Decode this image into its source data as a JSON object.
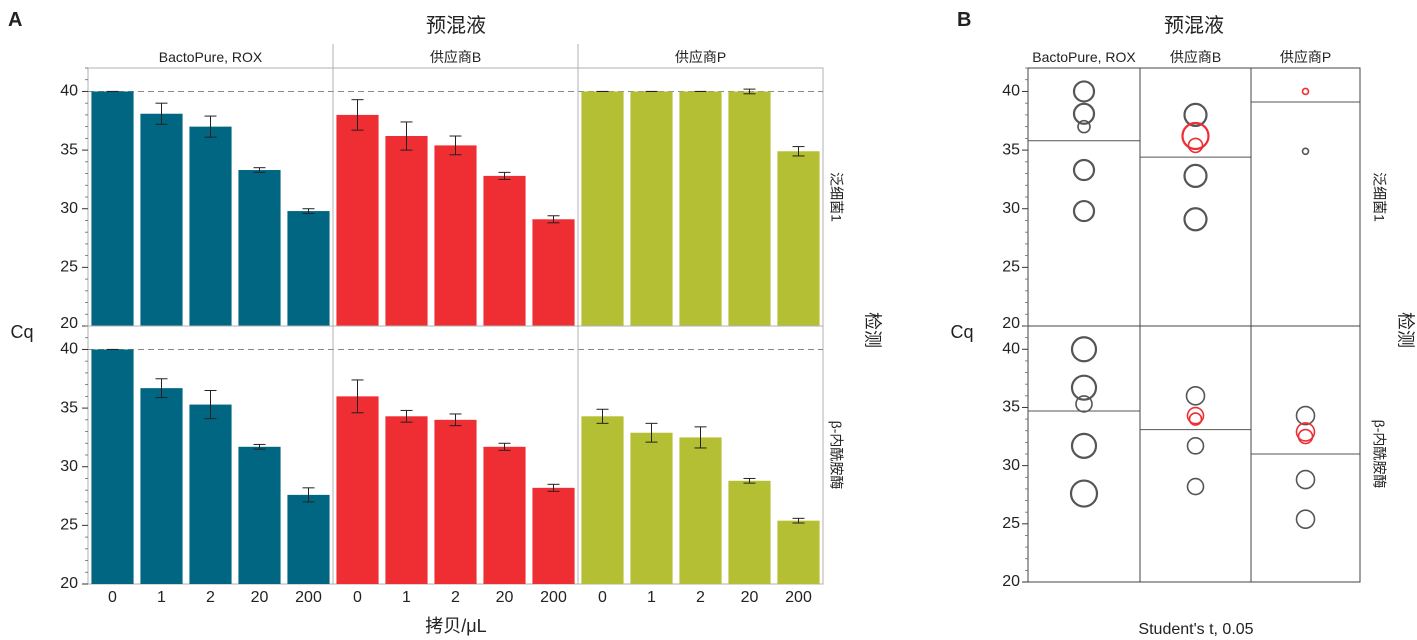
{
  "colors": {
    "BactoPure, ROX": "#006682",
    "供应商B": "#ee2e33",
    "供应商P": "#b5bf33",
    "circle_gray": "#555555",
    "circle_red": "#ee2e33"
  },
  "chart_data": [
    {
      "panel": "A",
      "type": "bar",
      "title": "预混液",
      "xlabel": "拷贝/μL",
      "ylabel": "Cq",
      "row_facet_label": "检测",
      "columns": [
        "BactoPure, ROX",
        "供应商B",
        "供应商P"
      ],
      "rows": [
        "泛细菌1",
        "β-内酰胺酶"
      ],
      "categories": [
        "0",
        "1",
        "2",
        "20",
        "200"
      ],
      "ylim": [
        20,
        42
      ],
      "yticks": [
        20,
        25,
        30,
        35,
        40
      ],
      "reference_line": 40,
      "data": {
        "泛细菌1": {
          "BactoPure, ROX": {
            "values": [
              40,
              38.1,
              37.0,
              33.3,
              29.8
            ],
            "errors": [
              0,
              0.9,
              0.9,
              0.2,
              0.2
            ]
          },
          "供应商B": {
            "values": [
              38.0,
              36.2,
              35.4,
              32.8,
              29.1
            ],
            "errors": [
              1.3,
              1.2,
              0.8,
              0.3,
              0.3
            ]
          },
          "供应商P": {
            "values": [
              40,
              40,
              40,
              40,
              34.9
            ],
            "errors": [
              0,
              0,
              0,
              0.2,
              0.4
            ]
          }
        },
        "β-内酰胺酶": {
          "BactoPure, ROX": {
            "values": [
              40,
              36.7,
              35.3,
              31.7,
              27.6
            ],
            "errors": [
              0,
              0.8,
              1.2,
              0.2,
              0.6
            ]
          },
          "供应商B": {
            "values": [
              36.0,
              34.3,
              34.0,
              31.7,
              28.2
            ],
            "errors": [
              1.4,
              0.5,
              0.5,
              0.3,
              0.3
            ]
          },
          "供应商P": {
            "values": [
              34.3,
              32.9,
              32.5,
              28.8,
              25.4
            ],
            "errors": [
              0.6,
              0.8,
              0.9,
              0.2,
              0.2
            ]
          }
        }
      }
    },
    {
      "panel": "B",
      "type": "scatter",
      "title": "预混液",
      "ylabel": "Cq",
      "row_facet_label": "检测",
      "note": "Student's t, 0.05",
      "columns": [
        "BactoPure, ROX",
        "供应商B",
        "供应商P"
      ],
      "rows": [
        "泛细菌1",
        "β-内酰胺酶"
      ],
      "ylim": [
        20,
        42
      ],
      "yticks": [
        20,
        25,
        30,
        35,
        40
      ],
      "data": {
        "泛细菌1": {
          "BactoPure, ROX": {
            "mean": 35.8,
            "points": [
              {
                "y": 40,
                "size": 10,
                "color": "gray"
              },
              {
                "y": 38.1,
                "size": 10,
                "color": "gray"
              },
              {
                "y": 37,
                "size": 6,
                "color": "gray"
              },
              {
                "y": 33.3,
                "size": 10,
                "color": "gray"
              },
              {
                "y": 29.8,
                "size": 10,
                "color": "gray"
              }
            ]
          },
          "供应商B": {
            "mean": 34.4,
            "points": [
              {
                "y": 38.0,
                "size": 11,
                "color": "gray"
              },
              {
                "y": 36.2,
                "size": 13,
                "color": "red"
              },
              {
                "y": 35.4,
                "size": 7,
                "color": "red"
              },
              {
                "y": 32.8,
                "size": 11,
                "color": "gray"
              },
              {
                "y": 29.1,
                "size": 11,
                "color": "gray"
              }
            ]
          },
          "供应商P": {
            "mean": 39.1,
            "points": [
              {
                "y": 40,
                "size": 3,
                "color": "red"
              },
              {
                "y": 34.9,
                "size": 3,
                "color": "gray"
              }
            ]
          }
        },
        "β-内酰胺酶": {
          "BactoPure, ROX": {
            "mean": 34.7,
            "points": [
              {
                "y": 40,
                "size": 12,
                "color": "gray"
              },
              {
                "y": 36.7,
                "size": 12,
                "color": "gray"
              },
              {
                "y": 35.3,
                "size": 8,
                "color": "gray"
              },
              {
                "y": 31.7,
                "size": 12,
                "color": "gray"
              },
              {
                "y": 27.6,
                "size": 13,
                "color": "gray"
              }
            ]
          },
          "供应商B": {
            "mean": 33.1,
            "points": [
              {
                "y": 36.0,
                "size": 9,
                "color": "gray"
              },
              {
                "y": 34.3,
                "size": 8,
                "color": "red"
              },
              {
                "y": 34.0,
                "size": 6,
                "color": "red"
              },
              {
                "y": 31.7,
                "size": 8,
                "color": "gray"
              },
              {
                "y": 28.2,
                "size": 8,
                "color": "gray"
              }
            ]
          },
          "供应商P": {
            "mean": 31.0,
            "points": [
              {
                "y": 34.3,
                "size": 9,
                "color": "gray"
              },
              {
                "y": 32.9,
                "size": 9,
                "color": "red"
              },
              {
                "y": 32.5,
                "size": 7,
                "color": "red"
              },
              {
                "y": 28.8,
                "size": 9,
                "color": "gray"
              },
              {
                "y": 25.4,
                "size": 9,
                "color": "gray"
              }
            ]
          }
        }
      }
    }
  ]
}
